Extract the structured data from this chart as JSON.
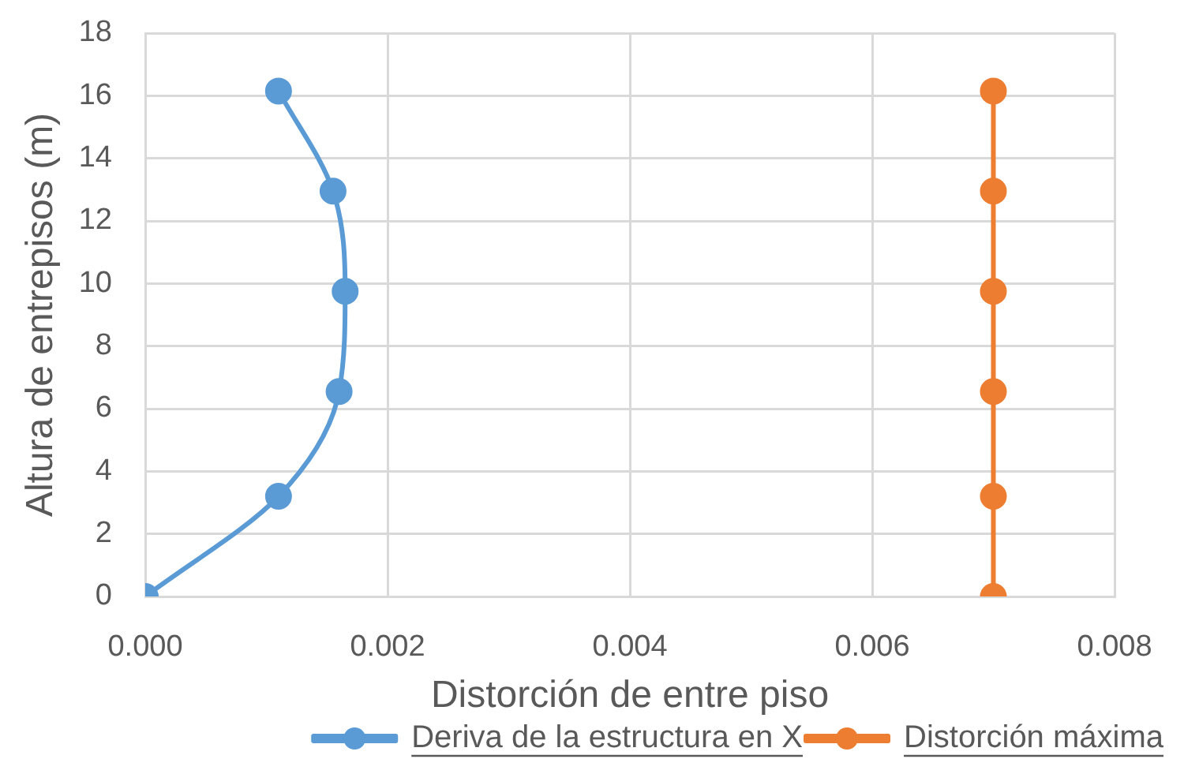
{
  "chart_data": {
    "type": "line",
    "xlabel": "Distorción de entre piso",
    "ylabel": "Altura de entrepisos (m)",
    "series": [
      {
        "name": "Deriva de la estructura en X",
        "color": "#5b9bd5",
        "x": [
          0,
          0.0011,
          0.0016,
          0.00165,
          0.00155,
          0.0011
        ],
        "values": [
          0,
          3.2,
          6.55,
          9.75,
          12.95,
          16.15
        ]
      },
      {
        "name": "Distorción máxima",
        "color": "#ed7d31",
        "x": [
          0.007,
          0.007,
          0.007,
          0.007,
          0.007,
          0.007
        ],
        "values": [
          0,
          3.2,
          6.55,
          9.75,
          12.95,
          16.15
        ]
      }
    ],
    "xlim": [
      0,
      0.008
    ],
    "xticks": [
      {
        "value": 0,
        "label": "0.000"
      },
      {
        "value": 0.002,
        "label": "0.002"
      },
      {
        "value": 0.004,
        "label": "0.004"
      },
      {
        "value": 0.006,
        "label": "0.006"
      },
      {
        "value": 0.008,
        "label": "0.008"
      }
    ],
    "ylim": [
      0,
      18
    ],
    "yticks": [
      0,
      2,
      4,
      6,
      8,
      10,
      12,
      14,
      16,
      18
    ],
    "grid": true,
    "legend": "bottom right",
    "marker": "circle",
    "line_style": "solid"
  }
}
